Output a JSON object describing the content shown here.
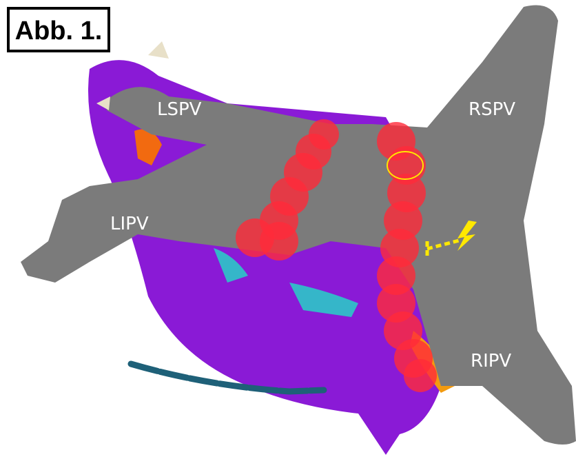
{
  "figure_label": "Abb. 1.",
  "labels": {
    "lspv": "LSPV",
    "rspv": "RSPV",
    "lipv": "LIPV",
    "ripv": "RIPV"
  }
}
